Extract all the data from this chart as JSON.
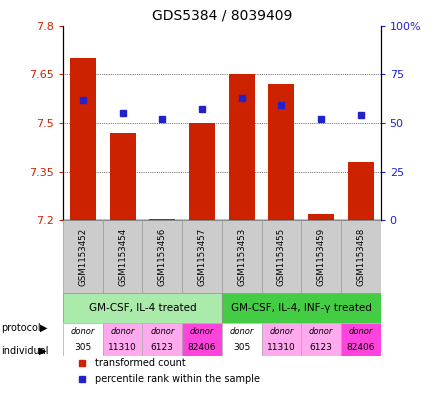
{
  "title": "GDS5384 / 8039409",
  "samples": [
    "GSM1153452",
    "GSM1153454",
    "GSM1153456",
    "GSM1153457",
    "GSM1153453",
    "GSM1153455",
    "GSM1153459",
    "GSM1153458"
  ],
  "transformed_count": [
    7.7,
    7.47,
    7.205,
    7.5,
    7.65,
    7.62,
    7.22,
    7.38
  ],
  "percentile_rank": [
    62,
    55,
    52,
    57,
    63,
    59,
    52,
    54
  ],
  "ylim_left": [
    7.2,
    7.8
  ],
  "ylim_right": [
    0,
    100
  ],
  "yticks_left": [
    7.2,
    7.35,
    7.5,
    7.65,
    7.8
  ],
  "yticks_right": [
    0,
    25,
    50,
    75,
    100
  ],
  "ytick_labels_left": [
    "7.2",
    "7.35",
    "7.5",
    "7.65",
    "7.8"
  ],
  "ytick_labels_right": [
    "0",
    "25",
    "50",
    "75",
    "100%"
  ],
  "bar_color": "#cc2200",
  "dot_color": "#2222cc",
  "base_value": 7.2,
  "protocols": [
    {
      "label": "GM-CSF, IL-4 treated",
      "span": [
        0,
        4
      ],
      "color": "#aaeaaa"
    },
    {
      "label": "GM-CSF, IL-4, INF-γ treated",
      "span": [
        4,
        8
      ],
      "color": "#44cc44"
    }
  ],
  "ind_labels_top": [
    "donor",
    "donor",
    "donor",
    "donor",
    "donor",
    "donor",
    "donor",
    "donor"
  ],
  "ind_labels_bot": [
    "305",
    "11310",
    "6123",
    "82406",
    "305",
    "11310",
    "6123",
    "82406"
  ],
  "ind_colors": [
    "#ffffff",
    "#ffaaee",
    "#ffaaee",
    "#ff44dd",
    "#ffffff",
    "#ffaaee",
    "#ffaaee",
    "#ff44dd"
  ],
  "legend_items": [
    {
      "label": "transformed count",
      "color": "#cc2200"
    },
    {
      "label": "percentile rank within the sample",
      "color": "#2222cc"
    }
  ],
  "annotation_protocol": "protocol",
  "annotation_individual": "individual",
  "background_color": "#ffffff",
  "xticklabel_bg": "#cccccc",
  "title_fontsize": 10,
  "tick_fontsize": 8,
  "label_fontsize": 8
}
